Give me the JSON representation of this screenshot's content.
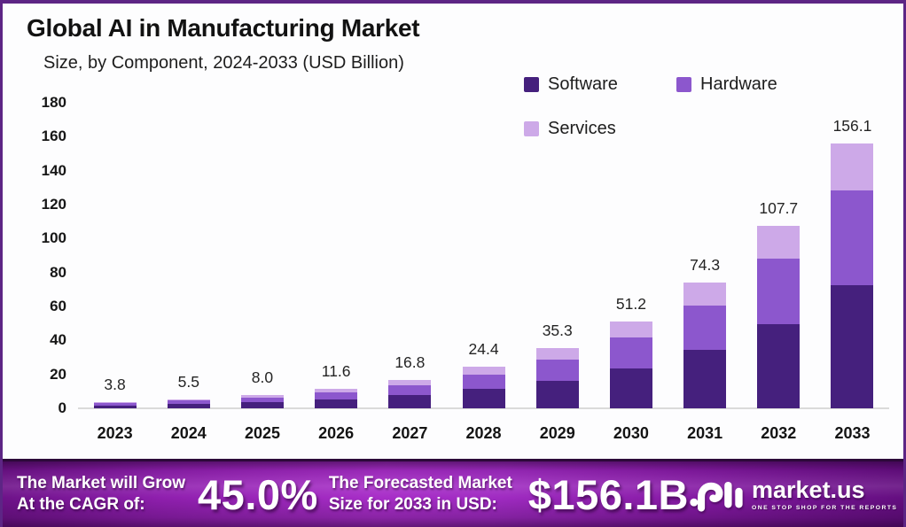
{
  "header": {
    "title": "Global AI in Manufacturing Market",
    "subtitle": "Size, by Component, 2024-2033 (USD Billion)"
  },
  "legend": {
    "items": [
      {
        "label": "Software",
        "color": "#45207d"
      },
      {
        "label": "Hardware",
        "color": "#8c57cd"
      },
      {
        "label": "Services",
        "color": "#cda9e8"
      }
    ]
  },
  "chart_data": {
    "type": "bar",
    "stacked": true,
    "title": "Global AI in Manufacturing Market",
    "subtitle": "Size, by Component, 2024-2033 (USD Billion)",
    "categories": [
      "2023",
      "2024",
      "2025",
      "2026",
      "2027",
      "2028",
      "2029",
      "2030",
      "2031",
      "2032",
      "2033"
    ],
    "totals": [
      3.8,
      5.5,
      8.0,
      11.6,
      16.8,
      24.4,
      35.3,
      51.2,
      74.3,
      107.7,
      156.1
    ],
    "total_labels": [
      "3.8",
      "5.5",
      "8.0",
      "11.6",
      "16.8",
      "24.4",
      "35.3",
      "51.2",
      "74.3",
      "107.7",
      "156.1"
    ],
    "series": [
      {
        "name": "Software",
        "color": "#45207d",
        "values": [
          1.8,
          2.6,
          3.7,
          5.4,
          7.8,
          11.3,
          16.3,
          23.5,
          34.3,
          49.8,
          72.5
        ]
      },
      {
        "name": "Hardware",
        "color": "#8c57cd",
        "values": [
          1.3,
          1.9,
          2.8,
          4.1,
          5.9,
          8.6,
          12.4,
          18.3,
          26.2,
          38.2,
          55.8
        ]
      },
      {
        "name": "Services",
        "color": "#cda9e8",
        "values": [
          0.7,
          1.0,
          1.5,
          2.1,
          3.1,
          4.5,
          6.6,
          9.4,
          13.8,
          19.7,
          27.8
        ]
      }
    ],
    "xlabel": "",
    "ylabel": "",
    "ylim": [
      0,
      180
    ],
    "yticks": [
      0,
      20,
      40,
      60,
      80,
      100,
      120,
      140,
      160,
      180
    ],
    "grid": false,
    "legend_position": "top-right",
    "value_labels": "total above each stacked bar"
  },
  "footer": {
    "left_line1": "The Market will Grow",
    "left_line2": "At the CAGR of:",
    "cagr_value": "45.0%",
    "mid_line1": "The Forecasted Market",
    "mid_line2": "Size for 2033 in USD:",
    "forecast_value": "$156.1B",
    "brand": {
      "name": "market.us",
      "tagline": "ONE STOP SHOP FOR THE REPORTS"
    }
  }
}
